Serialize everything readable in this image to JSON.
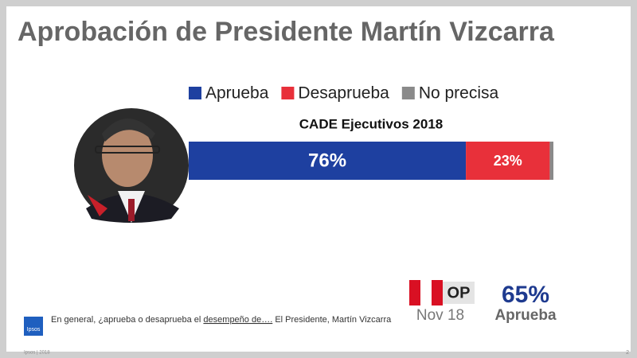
{
  "chart_data": {
    "type": "stacked-bar-horizontal",
    "title": "Aprobación de Presidente Martín Vizcarra",
    "categories": [
      "CADE Ejecutivos 2018"
    ],
    "xlim": [
      0,
      100
    ],
    "series": [
      {
        "name": "Aprueba",
        "color": "#1e40a0",
        "values": [
          76
        ],
        "value_labels": [
          "76%"
        ]
      },
      {
        "name": "Desaprueba",
        "color": "#e8303a",
        "values": [
          23
        ],
        "value_labels": [
          "23%"
        ]
      },
      {
        "name": "No precisa",
        "color": "#8a8a8a",
        "values": [
          1
        ]
      }
    ]
  },
  "reference": {
    "label": "OP",
    "date": "Nov 18",
    "value": "65%",
    "caption": "Aprueba"
  },
  "footnote": [
    "En general, ¿aprueba o desaprueba el ",
    "desempeño de….",
    " El Presidente, Martín Vizcarra"
  ],
  "logo": "Ipsos",
  "footer": "Ipsos | 2018",
  "page_number": "2"
}
